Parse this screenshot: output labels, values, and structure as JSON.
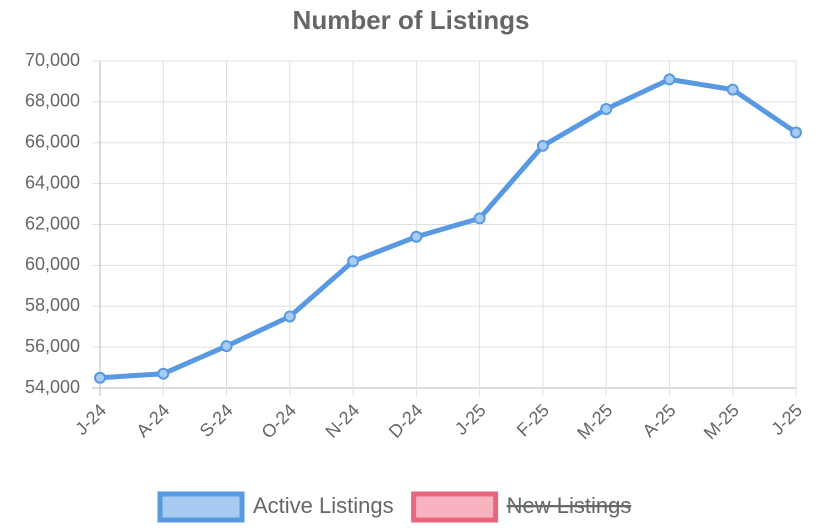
{
  "chart_data": {
    "type": "line",
    "title": "Number of Listings",
    "categories": [
      "J-24",
      "A-24",
      "S-24",
      "O-24",
      "N-24",
      "D-24",
      "J-25",
      "F-25",
      "M-25",
      "A-25",
      "M-25",
      "J-25"
    ],
    "series": [
      {
        "name": "Active Listings",
        "color": "#5899e2",
        "fill": "#a8cbf2",
        "values": [
          54500,
          54700,
          56050,
          57500,
          60200,
          61400,
          62300,
          65850,
          67650,
          69100,
          68600,
          66500
        ]
      },
      {
        "name": "New Listings",
        "color": "#e8677f",
        "fill": "#f7b3c0",
        "hidden": true,
        "values": [
          null,
          null,
          null,
          null,
          null,
          null,
          null,
          null,
          null,
          null,
          null,
          null
        ]
      }
    ],
    "ylim": [
      54000,
      70000
    ],
    "yticks": [
      {
        "value": 54000,
        "label": "54,000"
      },
      {
        "value": 56000,
        "label": "56,000"
      },
      {
        "value": 58000,
        "label": "58,000"
      },
      {
        "value": 60000,
        "label": "60,000"
      },
      {
        "value": 62000,
        "label": "62,000"
      },
      {
        "value": 64000,
        "label": "64,000"
      },
      {
        "value": 66000,
        "label": "66,000"
      },
      {
        "value": 68000,
        "label": "68,000"
      },
      {
        "value": 70000,
        "label": "70,000"
      }
    ],
    "grid": true,
    "legend": "bottom"
  }
}
